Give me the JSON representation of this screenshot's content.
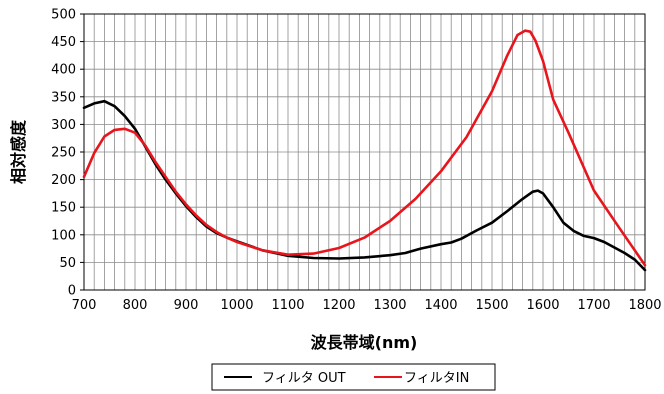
{
  "chart_data": {
    "type": "line",
    "xlabel": "波長帯域(nm)",
    "ylabel": "相対感度",
    "xlim": [
      700,
      1800
    ],
    "ylim": [
      0,
      500
    ],
    "x_ticks": [
      "700",
      "800",
      "900",
      "1000",
      "1100",
      "1200",
      "1300",
      "1400",
      "1500",
      "1600",
      "1700",
      "1800"
    ],
    "y_ticks": [
      "0",
      "50",
      "100",
      "150",
      "200",
      "250",
      "300",
      "350",
      "400",
      "450",
      "500"
    ],
    "grid": true,
    "legend_position": "bottom",
    "series": [
      {
        "name": "フィルタ OUT",
        "color": "#000000",
        "x": [
          700,
          720,
          740,
          760,
          780,
          800,
          820,
          840,
          860,
          880,
          900,
          920,
          940,
          960,
          980,
          1000,
          1050,
          1100,
          1150,
          1200,
          1250,
          1300,
          1330,
          1360,
          1400,
          1420,
          1440,
          1470,
          1500,
          1530,
          1560,
          1580,
          1590,
          1600,
          1620,
          1640,
          1660,
          1680,
          1700,
          1720,
          1740,
          1760,
          1780,
          1800
        ],
        "y": [
          330,
          338,
          342,
          333,
          315,
          292,
          260,
          228,
          200,
          175,
          152,
          132,
          115,
          103,
          95,
          88,
          72,
          62,
          58,
          57,
          59,
          63,
          67,
          75,
          83,
          86,
          93,
          108,
          122,
          143,
          165,
          178,
          180,
          175,
          150,
          122,
          107,
          98,
          94,
          87,
          77,
          67,
          55,
          36
        ]
      },
      {
        "name": "フィルタIN",
        "color": "#e8161c",
        "x": [
          700,
          720,
          740,
          760,
          780,
          800,
          820,
          840,
          860,
          880,
          900,
          920,
          940,
          960,
          980,
          1000,
          1050,
          1100,
          1150,
          1200,
          1250,
          1300,
          1350,
          1400,
          1450,
          1500,
          1530,
          1550,
          1565,
          1575,
          1585,
          1600,
          1620,
          1650,
          1700,
          1750,
          1800
        ],
        "y": [
          205,
          248,
          278,
          290,
          292,
          285,
          262,
          232,
          205,
          178,
          155,
          135,
          118,
          105,
          95,
          87,
          72,
          64,
          66,
          76,
          95,
          125,
          165,
          215,
          277,
          360,
          425,
          462,
          470,
          468,
          452,
          415,
          345,
          285,
          180,
          112,
          45
        ]
      }
    ]
  }
}
